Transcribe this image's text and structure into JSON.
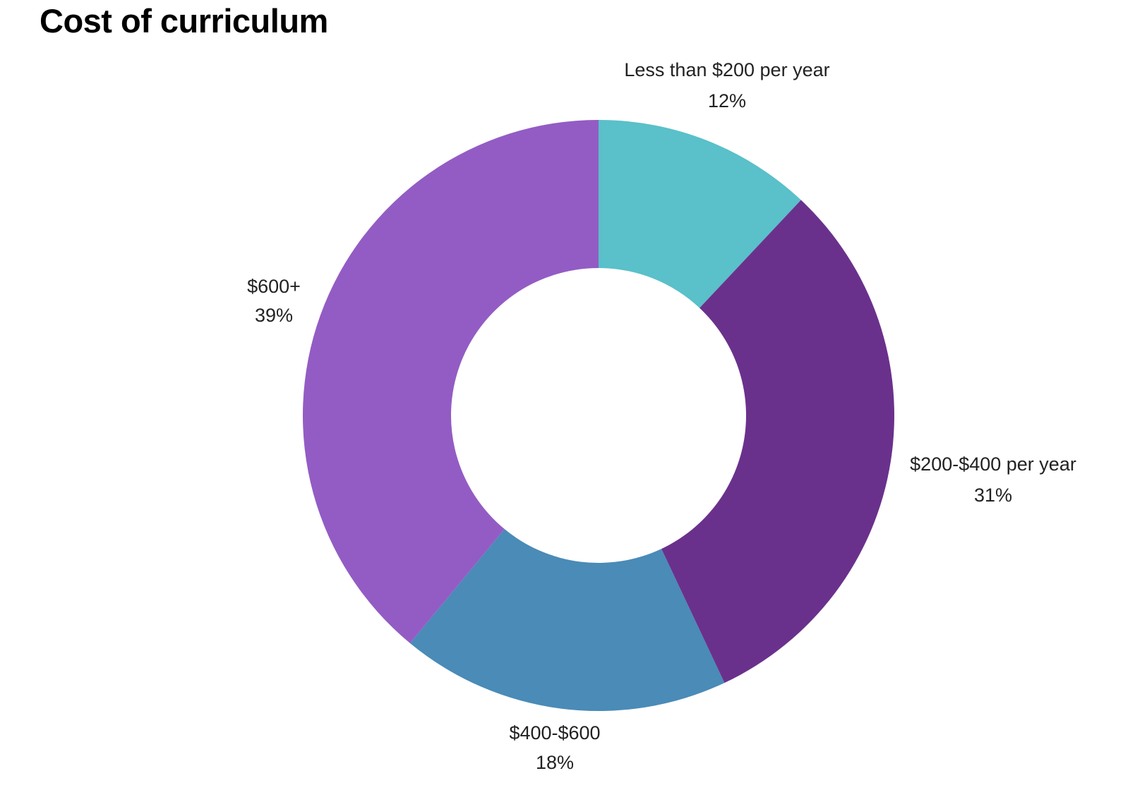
{
  "chart_data": {
    "type": "pie",
    "title": "Cost of curriculum",
    "donut": true,
    "legend": "none",
    "slices": [
      {
        "label": "Less than $200 per year",
        "value": 12,
        "value_label": "12%",
        "color": "#5ac0c9"
      },
      {
        "label": "$200-$400 per year",
        "value": 31,
        "value_label": "31%",
        "color": "#6a318c"
      },
      {
        "label": "$400-$600",
        "value": 18,
        "value_label": "18%",
        "color": "#4a8bb7"
      },
      {
        "label": "$600+",
        "value": 39,
        "value_label": "39%",
        "color": "#935cc4"
      }
    ]
  }
}
